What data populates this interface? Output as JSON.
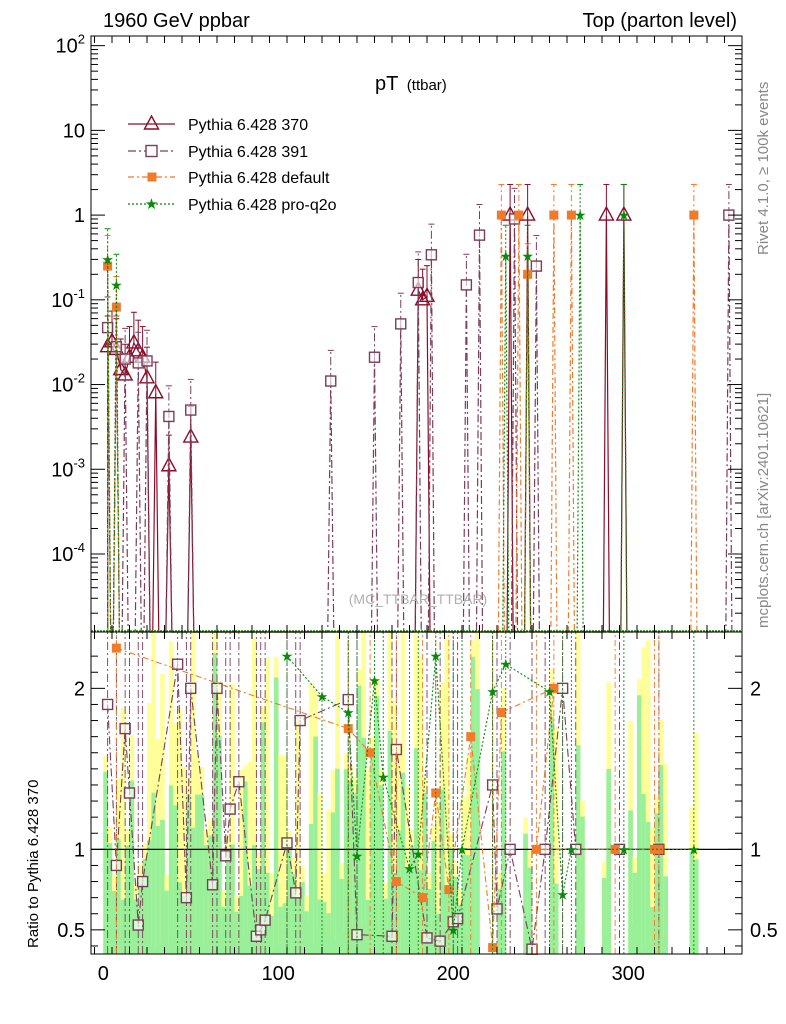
{
  "header": {
    "left_title": "1960 GeV ppbar",
    "right_title": "Top (parton level)"
  },
  "side_labels": {
    "rivet": "Rivet 4.1.0, ≥ 100k events",
    "mcplots": "mcplots.cern.ch [arXiv:2401.10621]"
  },
  "watermark": "(MC_TTBAR_TTBAR)",
  "colors": {
    "p370": "#8b0c28",
    "p391": "#7a3d5a",
    "default": "#f07b2a",
    "proq2o": "#0a8a0a",
    "band_yellow": "#ffff99",
    "band_green": "#99f099"
  },
  "chart_data": [
    {
      "id": "main",
      "type": "line",
      "title_main": "pT",
      "title_sub": "(ttbar)",
      "xlim": [
        -7,
        365
      ],
      "ylim": [
        1.2e-05,
        130
      ],
      "yscale": "log",
      "y_tick_labels": [
        "10^2",
        "10",
        "1",
        "10^-1",
        "10^-2",
        "10^-3",
        "10^-4"
      ],
      "y_tick_values": [
        100,
        10,
        1,
        0.1,
        0.01,
        0.001,
        0.0001
      ],
      "legend": {
        "placement": "top-left",
        "entries": [
          "Pythia 6.428 370",
          "Pythia 6.428 391",
          "Pythia 6.428 default",
          "Pythia 6.428 pro-q2o"
        ]
      },
      "series": [
        {
          "name": "Pythia 6.428 370",
          "marker": "triangle",
          "points": [
            [
              2.5,
              0.028
            ],
            [
              5,
              0.032
            ],
            [
              7.5,
              0.026
            ],
            [
              10,
              0.015
            ],
            [
              12.5,
              0.013
            ],
            [
              15,
              0.021
            ],
            [
              17.5,
              0.031
            ],
            [
              20,
              0.025
            ],
            [
              22.5,
              0.021
            ],
            [
              25,
              0.012
            ],
            [
              30,
              0.008
            ],
            [
              37.5,
              0.0011
            ],
            [
              50,
              0.0024
            ],
            [
              180,
              0.13
            ],
            [
              182.5,
              0.1
            ],
            [
              185,
              0.11
            ],
            [
              232.5,
              1
            ],
            [
              242.5,
              1
            ],
            [
              287.5,
              1
            ],
            [
              297.5,
              1
            ]
          ]
        },
        {
          "name": "Pythia 6.428 391",
          "marker": "square",
          "points": [
            [
              2.5,
              0.047
            ],
            [
              7.5,
              0.028
            ],
            [
              12.5,
              0.02
            ],
            [
              20,
              0.018
            ],
            [
              25,
              0.019
            ],
            [
              37.5,
              0.0042
            ],
            [
              50,
              0.005
            ],
            [
              130,
              0.011
            ],
            [
              155,
              0.021
            ],
            [
              170,
              0.052
            ],
            [
              180,
              0.16
            ],
            [
              187.5,
              0.34
            ],
            [
              207.5,
              0.15
            ],
            [
              215,
              0.58
            ],
            [
              235,
              0.9
            ],
            [
              247.5,
              0.25
            ],
            [
              357.5,
              1
            ]
          ]
        },
        {
          "name": "Pythia 6.428 default",
          "marker": "filled-square",
          "points": [
            [
              2.5,
              0.25
            ],
            [
              7.5,
              0.082
            ],
            [
              227.5,
              1
            ],
            [
              237.5,
              1
            ],
            [
              242.5,
              0.2
            ],
            [
              257.5,
              1
            ],
            [
              267.5,
              1
            ],
            [
              337.5,
              1
            ]
          ]
        },
        {
          "name": "Pythia 6.428 pro-q2o",
          "marker": "star",
          "points": [
            [
              2.5,
              0.3
            ],
            [
              7.5,
              0.15
            ],
            [
              230,
              0.33
            ],
            [
              242.5,
              0.33
            ],
            [
              272.5,
              1
            ],
            [
              297.5,
              1
            ]
          ]
        }
      ]
    },
    {
      "id": "ratio",
      "type": "line",
      "ylabel": "Ratio to Pythia 6.428 370",
      "xlim": [
        -7,
        365
      ],
      "ylim": [
        0.35,
        2.35
      ],
      "x_tick_labels": [
        "0",
        "100",
        "200",
        "300"
      ],
      "x_tick_values": [
        0,
        100,
        200,
        300
      ],
      "y_tick_labels": [
        "0.5",
        "1",
        "2"
      ],
      "y_tick_values": [
        0.5,
        1,
        2
      ],
      "series": [
        {
          "name": "Pythia 6.428 391",
          "marker": "square",
          "points": [
            [
              2.5,
              1.9
            ],
            [
              7.5,
              0.9
            ],
            [
              12.5,
              1.75
            ],
            [
              15,
              1.35
            ],
            [
              20,
              0.53
            ],
            [
              22.5,
              0.8
            ],
            [
              42.5,
              2.15
            ],
            [
              47.5,
              0.7
            ],
            [
              50,
              2.0
            ],
            [
              62.5,
              0.78
            ],
            [
              65,
              2.0
            ],
            [
              70,
              0.96
            ],
            [
              72.5,
              1.25
            ],
            [
              77.5,
              1.42
            ],
            [
              87.5,
              0.46
            ],
            [
              90,
              0.5
            ],
            [
              92.5,
              0.56
            ],
            [
              105,
              1.04
            ],
            [
              110,
              0.73
            ],
            [
              112.5,
              1.8
            ],
            [
              140,
              1.93
            ],
            [
              145,
              0.47
            ],
            [
              165,
              0.46
            ],
            [
              167.5,
              1.62
            ],
            [
              185,
              0.45
            ],
            [
              192.5,
              0.43
            ],
            [
              200,
              0.55
            ],
            [
              202.5,
              0.57
            ],
            [
              222.5,
              1.4
            ],
            [
              225,
              0.63
            ],
            [
              232.5,
              1.0
            ],
            [
              245,
              0.38
            ],
            [
              252.5,
              1.0
            ],
            [
              262.5,
              2.0
            ],
            [
              270,
              1.0
            ],
            [
              295,
              1.0
            ],
            [
              317.5,
              1.0
            ]
          ]
        },
        {
          "name": "Pythia 6.428 default",
          "marker": "filled-square",
          "points": [
            [
              7.5,
              2.25
            ],
            [
              140,
              1.75
            ],
            [
              152.5,
              1.6
            ],
            [
              167.5,
              0.8
            ],
            [
              182.5,
              0.7
            ],
            [
              190,
              1.35
            ],
            [
              197.5,
              0.75
            ],
            [
              210,
              1.7
            ],
            [
              222.5,
              0.39
            ],
            [
              227.5,
              1.85
            ],
            [
              257.5,
              2.0
            ],
            [
              247.5,
              1.0
            ],
            [
              292.5,
              1.0
            ],
            [
              315,
              1.0
            ],
            [
              317.5,
              1.0
            ]
          ]
        },
        {
          "name": "Pythia 6.428 pro-q2o",
          "marker": "star",
          "points": [
            [
              105,
              2.2
            ],
            [
              125,
              1.95
            ],
            [
              140,
              1.85
            ],
            [
              145,
              0.96
            ],
            [
              155,
              2.05
            ],
            [
              160,
              1.45
            ],
            [
              175,
              0.88
            ],
            [
              180,
              0.97
            ],
            [
              190,
              2.2
            ],
            [
              200,
              0.5
            ],
            [
              205,
              1.0
            ],
            [
              222.5,
              1.98
            ],
            [
              230,
              2.15
            ],
            [
              255,
              1.98
            ],
            [
              262.5,
              0.72
            ],
            [
              267.5,
              1.0
            ],
            [
              297.5,
              1.0
            ],
            [
              337.5,
              1.0
            ]
          ]
        }
      ]
    }
  ]
}
